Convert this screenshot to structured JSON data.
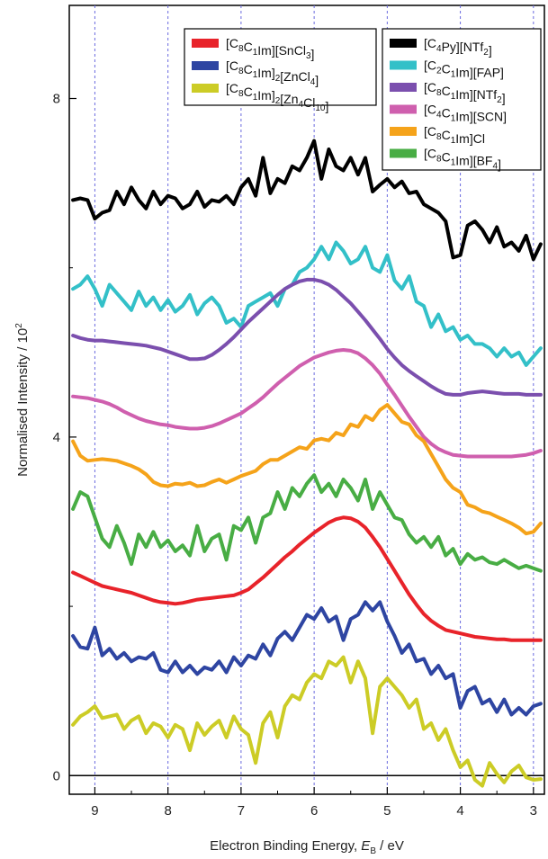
{
  "chart_data": {
    "type": "line",
    "xlabel": "Electron Binding Energy, E_B / eV",
    "ylabel": "Normalised Intensity / 10^2",
    "xlim": [
      9.35,
      2.85
    ],
    "ylim": [
      -0.22,
      9.1
    ],
    "x_ticks": [
      "9",
      "8",
      "7",
      "6",
      "5",
      "4",
      "3"
    ],
    "x_tick_values": [
      9,
      8,
      7,
      6,
      5,
      4,
      3
    ],
    "y_ticks": [
      "0",
      "4",
      "8"
    ],
    "y_tick_values": [
      0,
      4,
      8
    ],
    "grid": "vertical dashed at x ticks",
    "x": [
      9.3,
      9.2,
      9.1,
      9.0,
      8.9,
      8.8,
      8.7,
      8.6,
      8.5,
      8.4,
      8.3,
      8.2,
      8.1,
      8.0,
      7.9,
      7.8,
      7.7,
      7.6,
      7.5,
      7.4,
      7.3,
      7.2,
      7.1,
      7.0,
      6.9,
      6.8,
      6.7,
      6.6,
      6.5,
      6.4,
      6.3,
      6.2,
      6.1,
      6.0,
      5.9,
      5.8,
      5.7,
      5.6,
      5.5,
      5.4,
      5.3,
      5.2,
      5.1,
      5.0,
      4.9,
      4.8,
      4.7,
      4.6,
      4.5,
      4.4,
      4.3,
      4.2,
      4.1,
      4.0,
      3.9,
      3.8,
      3.7,
      3.6,
      3.5,
      3.4,
      3.3,
      3.2,
      3.1,
      3.0,
      2.9
    ],
    "series": [
      {
        "name": "[C4Py][NTf2]",
        "color": "#000000",
        "legend": "right",
        "name_parts": [
          [
            "C",
            "4"
          ],
          [
            "Py][NTf",
            "2"
          ],
          [
            "]",
            ""
          ]
        ],
        "values": [
          6.8,
          6.82,
          6.8,
          6.58,
          6.65,
          6.68,
          6.9,
          6.75,
          6.95,
          6.8,
          6.7,
          6.9,
          6.75,
          6.85,
          6.82,
          6.7,
          6.75,
          6.9,
          6.72,
          6.8,
          6.78,
          6.85,
          6.75,
          6.95,
          7.05,
          6.85,
          7.3,
          6.88,
          7.05,
          7.0,
          7.2,
          7.15,
          7.3,
          7.5,
          7.05,
          7.4,
          7.2,
          7.15,
          7.3,
          7.1,
          7.3,
          6.9,
          6.98,
          7.05,
          6.95,
          7.02,
          6.88,
          6.9,
          6.75,
          6.7,
          6.65,
          6.55,
          6.12,
          6.15,
          6.5,
          6.55,
          6.45,
          6.3,
          6.48,
          6.25,
          6.3,
          6.2,
          6.38,
          6.1,
          6.28
        ]
      },
      {
        "name": "[C2C1Im][FAP]",
        "color": "#33c0c8",
        "legend": "right",
        "name_parts": [
          [
            "C",
            "2"
          ],
          [
            "C",
            "1"
          ],
          [
            "Im][FAP]",
            ""
          ]
        ],
        "values": [
          5.75,
          5.8,
          5.9,
          5.75,
          5.55,
          5.8,
          5.7,
          5.6,
          5.5,
          5.72,
          5.55,
          5.65,
          5.5,
          5.62,
          5.48,
          5.55,
          5.68,
          5.45,
          5.58,
          5.65,
          5.55,
          5.35,
          5.4,
          5.3,
          5.55,
          5.6,
          5.65,
          5.7,
          5.55,
          5.75,
          5.8,
          5.95,
          6.0,
          6.1,
          6.25,
          6.1,
          6.3,
          6.2,
          6.05,
          6.1,
          6.25,
          6.0,
          5.95,
          6.15,
          5.85,
          5.75,
          5.9,
          5.6,
          5.55,
          5.3,
          5.45,
          5.25,
          5.3,
          5.15,
          5.2,
          5.1,
          5.1,
          5.05,
          4.95,
          5.05,
          4.95,
          5.0,
          4.85,
          4.95,
          5.05
        ]
      },
      {
        "name": "[C8C1Im][NTf2]",
        "color": "#7b4fae",
        "legend": "right",
        "name_parts": [
          [
            "C",
            "8"
          ],
          [
            "C",
            "1"
          ],
          [
            "Im][NTf",
            "2"
          ],
          [
            "]",
            ""
          ]
        ],
        "values": [
          5.2,
          5.17,
          5.15,
          5.14,
          5.14,
          5.13,
          5.12,
          5.11,
          5.1,
          5.09,
          5.08,
          5.06,
          5.04,
          5.01,
          4.98,
          4.95,
          4.92,
          4.92,
          4.93,
          4.97,
          5.03,
          5.1,
          5.18,
          5.27,
          5.36,
          5.44,
          5.52,
          5.6,
          5.68,
          5.75,
          5.8,
          5.84,
          5.86,
          5.86,
          5.84,
          5.8,
          5.74,
          5.66,
          5.58,
          5.48,
          5.38,
          5.27,
          5.16,
          5.04,
          4.94,
          4.85,
          4.78,
          4.72,
          4.66,
          4.6,
          4.55,
          4.51,
          4.5,
          4.5,
          4.52,
          4.53,
          4.54,
          4.53,
          4.52,
          4.51,
          4.51,
          4.51,
          4.5,
          4.5,
          4.5
        ]
      },
      {
        "name": "[C4C1Im][SCN]",
        "color": "#cf5fae",
        "legend": "right",
        "name_parts": [
          [
            "C",
            "4"
          ],
          [
            "C",
            "1"
          ],
          [
            "Im][SCN]",
            ""
          ]
        ],
        "values": [
          4.48,
          4.47,
          4.46,
          4.44,
          4.42,
          4.39,
          4.35,
          4.3,
          4.26,
          4.22,
          4.19,
          4.17,
          4.15,
          4.14,
          4.12,
          4.11,
          4.1,
          4.1,
          4.11,
          4.13,
          4.16,
          4.2,
          4.24,
          4.28,
          4.34,
          4.4,
          4.47,
          4.55,
          4.63,
          4.7,
          4.77,
          4.84,
          4.89,
          4.94,
          4.97,
          5.0,
          5.02,
          5.03,
          5.02,
          4.99,
          4.93,
          4.85,
          4.75,
          4.62,
          4.5,
          4.37,
          4.24,
          4.12,
          4.0,
          3.92,
          3.86,
          3.82,
          3.79,
          3.78,
          3.77,
          3.77,
          3.77,
          3.77,
          3.77,
          3.77,
          3.77,
          3.78,
          3.79,
          3.81,
          3.84
        ]
      },
      {
        "name": "[C8C1Im]Cl",
        "color": "#f5a31a",
        "legend": "right",
        "name_parts": [
          [
            "C",
            "8"
          ],
          [
            "C",
            "1"
          ],
          [
            "Im]Cl",
            ""
          ]
        ],
        "values": [
          3.95,
          3.78,
          3.72,
          3.73,
          3.74,
          3.73,
          3.72,
          3.69,
          3.66,
          3.62,
          3.56,
          3.47,
          3.43,
          3.42,
          3.45,
          3.44,
          3.46,
          3.42,
          3.43,
          3.47,
          3.5,
          3.46,
          3.5,
          3.54,
          3.57,
          3.6,
          3.68,
          3.73,
          3.73,
          3.78,
          3.83,
          3.88,
          3.86,
          3.96,
          3.98,
          3.96,
          4.05,
          4.02,
          4.15,
          4.12,
          4.25,
          4.2,
          4.32,
          4.38,
          4.28,
          4.18,
          4.15,
          4.02,
          3.95,
          3.8,
          3.65,
          3.5,
          3.4,
          3.35,
          3.2,
          3.17,
          3.12,
          3.1,
          3.06,
          3.02,
          2.98,
          2.93,
          2.86,
          2.88,
          2.98
        ]
      },
      {
        "name": "[C8C1Im][BF4]",
        "color": "#48ad44",
        "legend": "right",
        "name_parts": [
          [
            "C",
            "8"
          ],
          [
            "C",
            "1"
          ],
          [
            "Im][BF",
            "4"
          ],
          [
            "]",
            ""
          ]
        ],
        "values": [
          3.15,
          3.35,
          3.3,
          3.05,
          2.8,
          2.7,
          2.95,
          2.75,
          2.5,
          2.85,
          2.7,
          2.88,
          2.7,
          2.78,
          2.65,
          2.72,
          2.6,
          2.95,
          2.65,
          2.8,
          2.85,
          2.55,
          2.95,
          2.9,
          3.05,
          2.75,
          3.05,
          3.1,
          3.35,
          3.15,
          3.4,
          3.3,
          3.45,
          3.55,
          3.35,
          3.45,
          3.3,
          3.5,
          3.4,
          3.25,
          3.5,
          3.15,
          3.35,
          3.2,
          3.05,
          3.02,
          2.85,
          2.75,
          2.82,
          2.7,
          2.82,
          2.6,
          2.68,
          2.5,
          2.62,
          2.55,
          2.58,
          2.52,
          2.5,
          2.55,
          2.5,
          2.45,
          2.48,
          2.45,
          2.42
        ]
      },
      {
        "name": "[C8C1Im][SnCl3]",
        "color": "#e8232a",
        "legend": "left",
        "name_parts": [
          [
            "C",
            "8"
          ],
          [
            "C",
            "1"
          ],
          [
            "Im][SnCl",
            "3"
          ],
          [
            "]",
            ""
          ]
        ],
        "values": [
          2.4,
          2.36,
          2.32,
          2.28,
          2.24,
          2.22,
          2.2,
          2.18,
          2.16,
          2.13,
          2.1,
          2.07,
          2.05,
          2.04,
          2.03,
          2.04,
          2.06,
          2.08,
          2.09,
          2.1,
          2.11,
          2.12,
          2.13,
          2.16,
          2.2,
          2.27,
          2.34,
          2.42,
          2.5,
          2.58,
          2.65,
          2.73,
          2.8,
          2.87,
          2.93,
          2.99,
          3.03,
          3.05,
          3.04,
          3.0,
          2.93,
          2.82,
          2.7,
          2.56,
          2.42,
          2.28,
          2.14,
          2.02,
          1.91,
          1.83,
          1.77,
          1.72,
          1.7,
          1.68,
          1.66,
          1.64,
          1.63,
          1.62,
          1.61,
          1.61,
          1.6,
          1.6,
          1.6,
          1.6,
          1.6
        ]
      },
      {
        "name": "[C8C1Im]2[ZnCl4]",
        "color": "#2e45a2",
        "legend": "left",
        "name_parts": [
          [
            "C",
            "8"
          ],
          [
            "C",
            "1"
          ],
          [
            "Im]",
            "2"
          ],
          [
            "[ZnCl",
            "4"
          ],
          [
            "]",
            ""
          ]
        ],
        "values": [
          1.65,
          1.52,
          1.5,
          1.75,
          1.42,
          1.5,
          1.38,
          1.45,
          1.35,
          1.4,
          1.38,
          1.45,
          1.25,
          1.22,
          1.35,
          1.22,
          1.3,
          1.2,
          1.28,
          1.25,
          1.35,
          1.22,
          1.4,
          1.3,
          1.42,
          1.38,
          1.55,
          1.42,
          1.62,
          1.7,
          1.6,
          1.75,
          1.9,
          1.85,
          1.98,
          1.82,
          1.88,
          1.6,
          1.85,
          1.9,
          2.05,
          1.95,
          2.05,
          1.82,
          1.65,
          1.45,
          1.55,
          1.35,
          1.38,
          1.2,
          1.3,
          1.15,
          1.2,
          0.8,
          1.0,
          1.05,
          0.85,
          0.9,
          0.75,
          0.9,
          0.72,
          0.8,
          0.72,
          0.82,
          0.85
        ]
      },
      {
        "name": "[C8C1Im]2[Zn4Cl10]",
        "color": "#cccc26",
        "legend": "left",
        "name_parts": [
          [
            "C",
            "8"
          ],
          [
            "C",
            "1"
          ],
          [
            "Im]",
            "2"
          ],
          [
            "[Zn",
            "4"
          ],
          [
            "Cl",
            "10"
          ],
          [
            "]",
            ""
          ]
        ],
        "values": [
          0.6,
          0.7,
          0.75,
          0.82,
          0.68,
          0.7,
          0.72,
          0.55,
          0.65,
          0.7,
          0.5,
          0.62,
          0.58,
          0.45,
          0.6,
          0.55,
          0.3,
          0.62,
          0.48,
          0.58,
          0.65,
          0.45,
          0.7,
          0.55,
          0.48,
          0.15,
          0.62,
          0.75,
          0.45,
          0.82,
          0.95,
          0.9,
          1.1,
          1.2,
          1.15,
          1.35,
          1.3,
          1.4,
          1.1,
          1.35,
          1.15,
          0.5,
          1.05,
          1.15,
          1.05,
          0.95,
          0.8,
          0.9,
          0.55,
          0.62,
          0.42,
          0.55,
          0.3,
          0.1,
          0.18,
          -0.05,
          -0.12,
          0.15,
          0.02,
          -0.08,
          0.05,
          0.12,
          -0.02,
          -0.05,
          -0.04
        ]
      }
    ]
  }
}
